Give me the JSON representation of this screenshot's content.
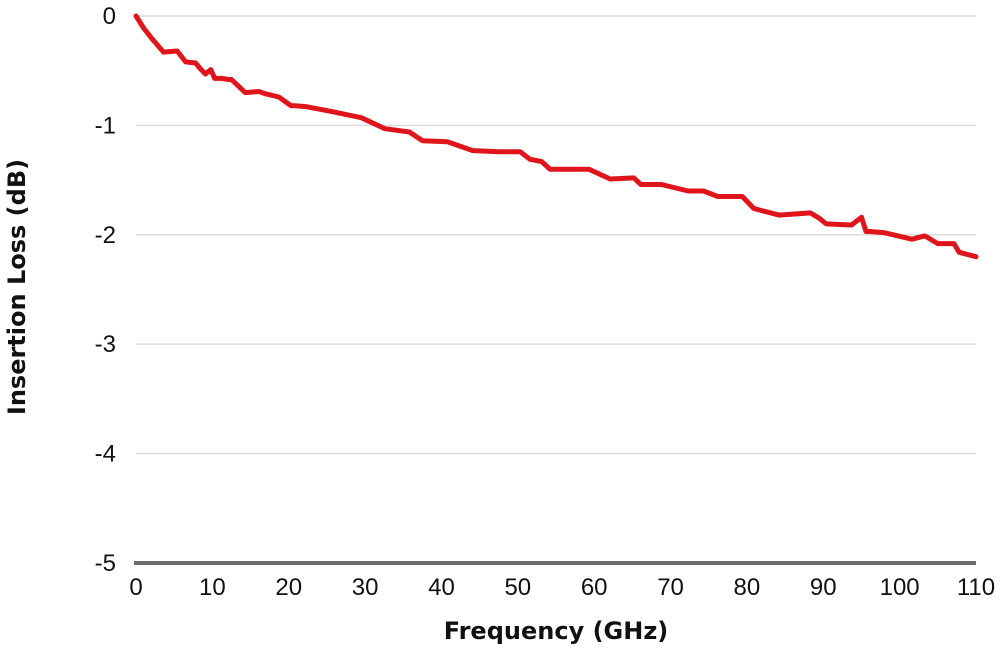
{
  "chart_data": {
    "type": "line",
    "title": "",
    "xlabel": "Frequency (GHz)",
    "ylabel": "Insertion Loss (dB)",
    "xlim": [
      0,
      110
    ],
    "ylim": [
      -5,
      0
    ],
    "xticks": [
      0,
      10,
      20,
      30,
      40,
      50,
      60,
      70,
      80,
      90,
      100,
      110
    ],
    "xtick_labels": [
      "0",
      "10",
      "20",
      "30",
      "40",
      "50",
      "60",
      "70",
      "80",
      "90",
      "100",
      "110"
    ],
    "yticks": [
      0,
      -1,
      -2,
      -3,
      -4,
      -5
    ],
    "ytick_labels": [
      "0",
      "-1",
      "-2",
      "-3",
      "-4",
      "-5"
    ],
    "grid": true,
    "legend": "none",
    "series": [
      {
        "color": "#e0141b",
        "x": [
          0,
          1,
          2,
          3.6,
          5.4,
          6.5,
          7.8,
          8.4,
          9.1,
          9.8,
          10.3,
          11.2,
          12.1,
          12.5,
          14.3,
          16.1,
          16.9,
          18.7,
          20.3,
          20.8,
          22.4,
          25.4,
          29.5,
          32.6,
          35.8,
          37.5,
          40.8,
          44.1,
          47.6,
          50.3,
          51.6,
          53.1,
          53.6,
          54.2,
          55.2,
          59.3,
          62.1,
          65.2,
          66.1,
          68.8,
          72.3,
          74.3,
          76.2,
          78.3,
          79.4,
          80.9,
          84.2,
          88.3,
          89.5,
          90.4,
          93.7,
          95,
          95.6,
          96.1,
          97.9,
          101.6,
          103.3,
          105,
          107.1,
          107.8,
          110
        ],
        "y": [
          0,
          -0.11,
          -0.2,
          -0.33,
          -0.32,
          -0.42,
          -0.43,
          -0.48,
          -0.53,
          -0.49,
          -0.57,
          -0.57,
          -0.58,
          -0.58,
          -0.7,
          -0.69,
          -0.71,
          -0.74,
          -0.82,
          -0.82,
          -0.83,
          -0.87,
          -0.93,
          -1.03,
          -1.06,
          -1.14,
          -1.15,
          -1.23,
          -1.24,
          -1.24,
          -1.31,
          -1.33,
          -1.36,
          -1.4,
          -1.4,
          -1.4,
          -1.49,
          -1.48,
          -1.54,
          -1.54,
          -1.6,
          -1.6,
          -1.65,
          -1.65,
          -1.65,
          -1.76,
          -1.82,
          -1.8,
          -1.85,
          -1.9,
          -1.91,
          -1.84,
          -1.97,
          -1.97,
          -1.98,
          -2.04,
          -2.01,
          -2.08,
          -2.08,
          -2.16,
          -2.2
        ]
      }
    ]
  }
}
